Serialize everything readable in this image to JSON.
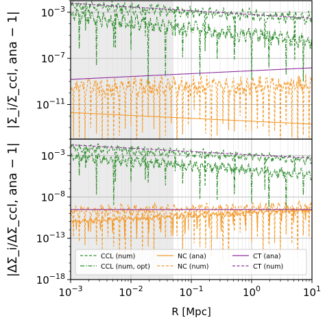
{
  "chart_data": [
    {
      "type": "line",
      "panel": "top",
      "ylabel": "|Σ_i/Σ_ccl, ana − 1|",
      "xscale": "log",
      "yscale": "log",
      "xlim": [
        0.001,
        10
      ],
      "ylim": [
        1e-14,
        0.01
      ],
      "xticks": [
        {
          "value": 0.001,
          "base": "10",
          "exp": "−3"
        },
        {
          "value": 0.01,
          "base": "10",
          "exp": "−2"
        },
        {
          "value": 0.1,
          "base": "10",
          "exp": "−1"
        },
        {
          "value": 1,
          "base": "10",
          "exp": "0"
        },
        {
          "value": 10,
          "base": "10",
          "exp": "1"
        }
      ],
      "yticks": [
        {
          "value": 0.001,
          "base": "10",
          "exp": "−3"
        },
        {
          "value": 1e-07,
          "base": "10",
          "exp": "−7"
        },
        {
          "value": 1e-11,
          "base": "10",
          "exp": "−11"
        }
      ],
      "shaded_region": [
        0.001,
        0.05
      ],
      "grid": true,
      "series": [
        {
          "name": "CCL (num)",
          "color": "#2a8a2a",
          "style": "dashed",
          "level_start": 0.004,
          "level_end": 0.0003,
          "oscillation": 1.4,
          "dips": 8
        },
        {
          "name": "CCL (num, opt)",
          "color": "#2a8a2a",
          "style": "dashdot",
          "level_start": 0.0005,
          "level_end": 3e-06,
          "oscillation": 1.8,
          "dips": 14
        },
        {
          "name": "NC (ana)",
          "color": "#f39a2b",
          "style": "solid",
          "level_start": 2e-12,
          "level_end": 2e-13,
          "oscillation": 0,
          "dips": 0
        },
        {
          "name": "NC (num)",
          "color": "#f39a2b",
          "style": "dashed",
          "level_start": 3e-10,
          "level_end": 5e-10,
          "oscillation": 2.2,
          "dips": 40
        },
        {
          "name": "CT (ana)",
          "color": "#8e2c9c",
          "style": "solid",
          "level_start": 1.5e-09,
          "level_end": 1.5e-08,
          "oscillation": 0,
          "dips": 0
        },
        {
          "name": "CT (num)",
          "color": "#8e2c9c",
          "style": "dashed",
          "level_start": 0.006,
          "level_end": 0.0003,
          "oscillation": 0,
          "dips": 0
        }
      ]
    },
    {
      "type": "line",
      "panel": "bottom",
      "xlabel": "R [Mpc]",
      "ylabel": "|ΔΣ_i/ΔΣ_ccl, ana − 1|",
      "xscale": "log",
      "yscale": "log",
      "xlim": [
        0.001,
        10
      ],
      "ylim": [
        1e-18,
        0.1
      ],
      "xticks": [
        {
          "value": 0.001,
          "base": "10",
          "exp": "−3"
        },
        {
          "value": 0.01,
          "base": "10",
          "exp": "−2"
        },
        {
          "value": 0.1,
          "base": "10",
          "exp": "−1"
        },
        {
          "value": 1,
          "base": "10",
          "exp": "0"
        },
        {
          "value": 10,
          "base": "10",
          "exp": "1"
        }
      ],
      "yticks": [
        {
          "value": 0.001,
          "base": "10",
          "exp": "−3"
        },
        {
          "value": 1e-08,
          "base": "10",
          "exp": "−8"
        },
        {
          "value": 1e-13,
          "base": "10",
          "exp": "−13"
        },
        {
          "value": 1e-18,
          "base": "10",
          "exp": "−18"
        }
      ],
      "shaded_region": [
        0.001,
        0.05
      ],
      "grid": true,
      "legend_position": "lower center",
      "series": [
        {
          "name": "CCL (num)",
          "color": "#2a8a2a",
          "style": "dashed",
          "level_start": 0.01,
          "level_end": 0.0003,
          "oscillation": 1.5,
          "dips": 8
        },
        {
          "name": "CCL (num, opt)",
          "color": "#2a8a2a",
          "style": "dashdot",
          "level_start": 0.0008,
          "level_end": 5e-06,
          "oscillation": 1.8,
          "dips": 14
        },
        {
          "name": "NC (ana)",
          "color": "#f39a2b",
          "style": "solid",
          "level_start": 1e-11,
          "level_end": 3e-10,
          "oscillation": 0.8,
          "dips": 20
        },
        {
          "name": "NC (num)",
          "color": "#f39a2b",
          "style": "dashed",
          "level_start": 2e-10,
          "level_end": 5e-10,
          "oscillation": 2.2,
          "dips": 40
        },
        {
          "name": "CT (ana)",
          "color": "#8e2c9c",
          "style": "solid",
          "level_start": 3e-10,
          "level_end": 3e-10,
          "oscillation": 0,
          "dips": 0
        },
        {
          "name": "CT (num)",
          "color": "#8e2c9c",
          "style": "dashed",
          "level_start": 0.02,
          "level_end": 0.0005,
          "oscillation": 0,
          "dips": 0
        }
      ]
    }
  ]
}
